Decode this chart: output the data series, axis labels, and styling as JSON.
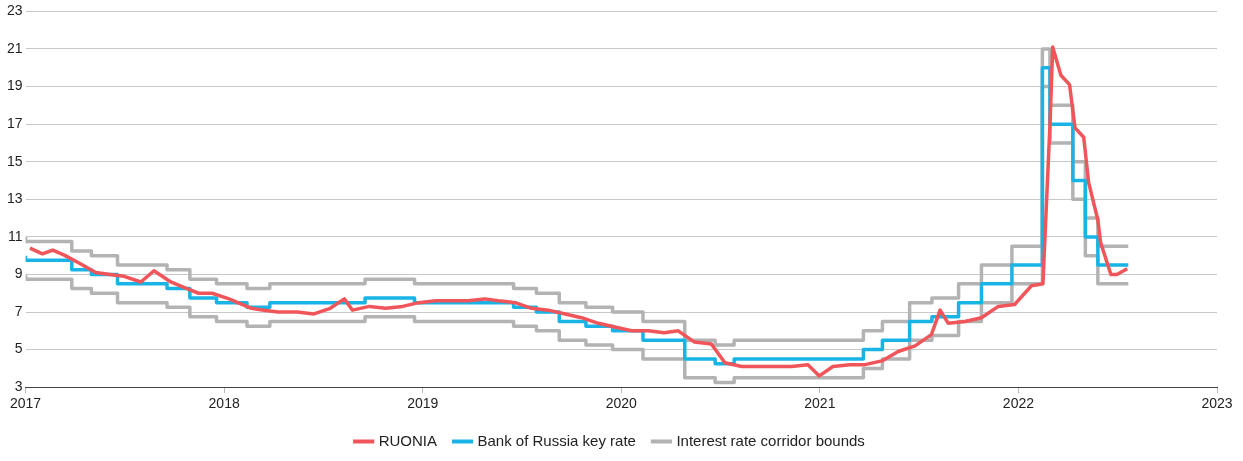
{
  "chart_data": {
    "type": "line",
    "xlim": [
      "2017",
      "2023"
    ],
    "xticks": [
      "2017",
      "2018",
      "2019",
      "2020",
      "2021",
      "2022",
      "2023"
    ],
    "ylim": [
      3,
      23
    ],
    "yticks": [
      3,
      5,
      7,
      9,
      11,
      13,
      15,
      17,
      19,
      21,
      23
    ],
    "grid": "y",
    "legend": "bottom",
    "marker": "none",
    "line_style": "solid",
    "series": [
      {
        "name": "RUONIA",
        "type": "line",
        "color": "#f0555a",
        "x": [
          "2017-01-09",
          "2017-02-01",
          "2017-02-20",
          "2017-03-15",
          "2017-04-10",
          "2017-05-10",
          "2017-06-05",
          "2017-07-01",
          "2017-08-01",
          "2017-08-25",
          "2017-09-25",
          "2017-10-20",
          "2017-11-15",
          "2017-12-10",
          "2018-01-10",
          "2018-02-20",
          "2018-03-15",
          "2018-04-10",
          "2018-05-15",
          "2018-06-15",
          "2018-07-15",
          "2018-08-10",
          "2018-08-25",
          "2018-09-25",
          "2018-10-25",
          "2018-11-25",
          "2018-12-25",
          "2019-01-25",
          "2019-02-25",
          "2019-03-25",
          "2019-04-25",
          "2019-05-20",
          "2019-06-20",
          "2019-07-20",
          "2019-08-20",
          "2019-09-20",
          "2019-10-20",
          "2019-11-20",
          "2019-12-20",
          "2020-01-20",
          "2020-02-20",
          "2020-03-20",
          "2020-04-15",
          "2020-05-15",
          "2020-06-15",
          "2020-07-10",
          "2020-08-10",
          "2020-09-10",
          "2020-10-10",
          "2020-11-10",
          "2020-12-10",
          "2020-12-31",
          "2021-01-25",
          "2021-02-25",
          "2021-03-25",
          "2021-04-25",
          "2021-05-25",
          "2021-06-25",
          "2021-07-25",
          "2021-08-10",
          "2021-08-25",
          "2021-09-25",
          "2021-10-25",
          "2021-11-25",
          "2021-12-25",
          "2022-01-25",
          "2022-02-15",
          "2022-02-28",
          "2022-03-05",
          "2022-03-20",
          "2022-04-05",
          "2022-04-15",
          "2022-05-01",
          "2022-05-10",
          "2022-05-27",
          "2022-06-01",
          "2022-06-20",
          "2022-07-01",
          "2022-07-20"
        ],
        "values": [
          10.4,
          10.1,
          10.3,
          10,
          9.6,
          9.1,
          9,
          8.9,
          8.6,
          9.2,
          8.6,
          8.3,
          8,
          8,
          7.7,
          7.2,
          7.1,
          7,
          7,
          6.9,
          7.2,
          7.7,
          7.1,
          7.3,
          7.2,
          7.3,
          7.5,
          7.6,
          7.6,
          7.6,
          7.7,
          7.6,
          7.5,
          7.2,
          7.1,
          6.9,
          6.7,
          6.4,
          6.2,
          6,
          6,
          5.9,
          6,
          5.4,
          5.3,
          4.3,
          4.1,
          4.1,
          4.1,
          4.1,
          4.2,
          3.6,
          4.1,
          4.2,
          4.2,
          4.4,
          4.9,
          5.2,
          5.8,
          7.1,
          6.4,
          6.5,
          6.7,
          7.3,
          7.4,
          8.4,
          8.5,
          17,
          21.1,
          19.6,
          19.1,
          16.8,
          16.3,
          13.9,
          11.9,
          10.7,
          9,
          9,
          9.3
        ]
      },
      {
        "name": "Bank of Russia key rate",
        "type": "step",
        "color": "#19b4e6",
        "x": [
          "2017-01-01",
          "2017-03-27",
          "2017-05-02",
          "2017-06-19",
          "2017-09-18",
          "2017-10-30",
          "2017-12-18",
          "2018-02-12",
          "2018-03-26",
          "2018-09-17",
          "2018-12-17",
          "2019-06-17",
          "2019-07-29",
          "2019-09-09",
          "2019-10-28",
          "2019-12-16",
          "2020-02-10",
          "2020-04-27",
          "2020-06-22",
          "2020-07-27",
          "2021-03-22",
          "2021-04-26",
          "2021-06-15",
          "2021-07-26",
          "2021-09-13",
          "2021-10-25",
          "2021-12-20",
          "2022-02-14",
          "2022-02-28",
          "2022-04-11",
          "2022-05-04",
          "2022-05-27",
          "2022-06-14",
          "2022-07-22"
        ],
        "values": [
          10,
          9.75,
          9.25,
          9,
          8.5,
          8.25,
          7.75,
          7.5,
          7.25,
          7.5,
          7.75,
          7.5,
          7.25,
          7,
          6.5,
          6.25,
          6,
          5.5,
          4.5,
          4.25,
          4.5,
          5,
          5.5,
          6.5,
          6.75,
          7.5,
          8.5,
          9.5,
          20,
          17,
          14,
          11,
          9.5,
          9.5
        ]
      },
      {
        "name": "Interest rate corridor bounds",
        "type": "step",
        "color": "#b3b3b3",
        "x": [
          "2017-01-01",
          "2017-03-27",
          "2017-05-02",
          "2017-06-19",
          "2017-09-18",
          "2017-10-30",
          "2017-12-18",
          "2018-02-12",
          "2018-03-26",
          "2018-09-17",
          "2018-12-17",
          "2019-06-17",
          "2019-07-29",
          "2019-09-09",
          "2019-10-28",
          "2019-12-16",
          "2020-02-10",
          "2020-04-27",
          "2020-06-22",
          "2020-07-27",
          "2021-03-22",
          "2021-04-26",
          "2021-06-15",
          "2021-07-26",
          "2021-09-13",
          "2021-10-25",
          "2021-12-20",
          "2022-02-14",
          "2022-02-28",
          "2022-04-11",
          "2022-05-04",
          "2022-05-27",
          "2022-06-14",
          "2022-07-22"
        ],
        "values": [
          11,
          10.75,
          10.25,
          10,
          9.5,
          9.25,
          8.75,
          8.5,
          8.25,
          8.5,
          8.75,
          8.5,
          8.25,
          8,
          7.5,
          7.25,
          7,
          6.5,
          5.5,
          5.25,
          5.5,
          6,
          6.5,
          7.5,
          7.75,
          8.5,
          9.5,
          10.5,
          21,
          18,
          15,
          12,
          10.5,
          10.5
        ]
      },
      {
        "type": "step",
        "color": "#b3b3b3",
        "x": [
          "2017-01-01",
          "2017-03-27",
          "2017-05-02",
          "2017-06-19",
          "2017-09-18",
          "2017-10-30",
          "2017-12-18",
          "2018-02-12",
          "2018-03-26",
          "2018-09-17",
          "2018-12-17",
          "2019-06-17",
          "2019-07-29",
          "2019-09-09",
          "2019-10-28",
          "2019-12-16",
          "2020-02-10",
          "2020-04-27",
          "2020-06-22",
          "2020-07-27",
          "2021-03-22",
          "2021-04-26",
          "2021-06-15",
          "2021-07-26",
          "2021-09-13",
          "2021-10-25",
          "2021-12-20",
          "2022-02-14",
          "2022-02-28",
          "2022-04-11",
          "2022-05-04",
          "2022-05-27",
          "2022-06-14",
          "2022-07-22"
        ],
        "values": [
          9,
          8.75,
          8.25,
          8,
          7.5,
          7.25,
          6.75,
          6.5,
          6.25,
          6.5,
          6.75,
          6.5,
          6.25,
          6,
          5.5,
          5.25,
          5,
          4.5,
          3.5,
          3.25,
          3.5,
          4,
          4.5,
          5.5,
          5.75,
          6.5,
          7.5,
          8.5,
          19,
          16,
          13,
          10,
          8.5,
          8.5
        ]
      }
    ]
  }
}
